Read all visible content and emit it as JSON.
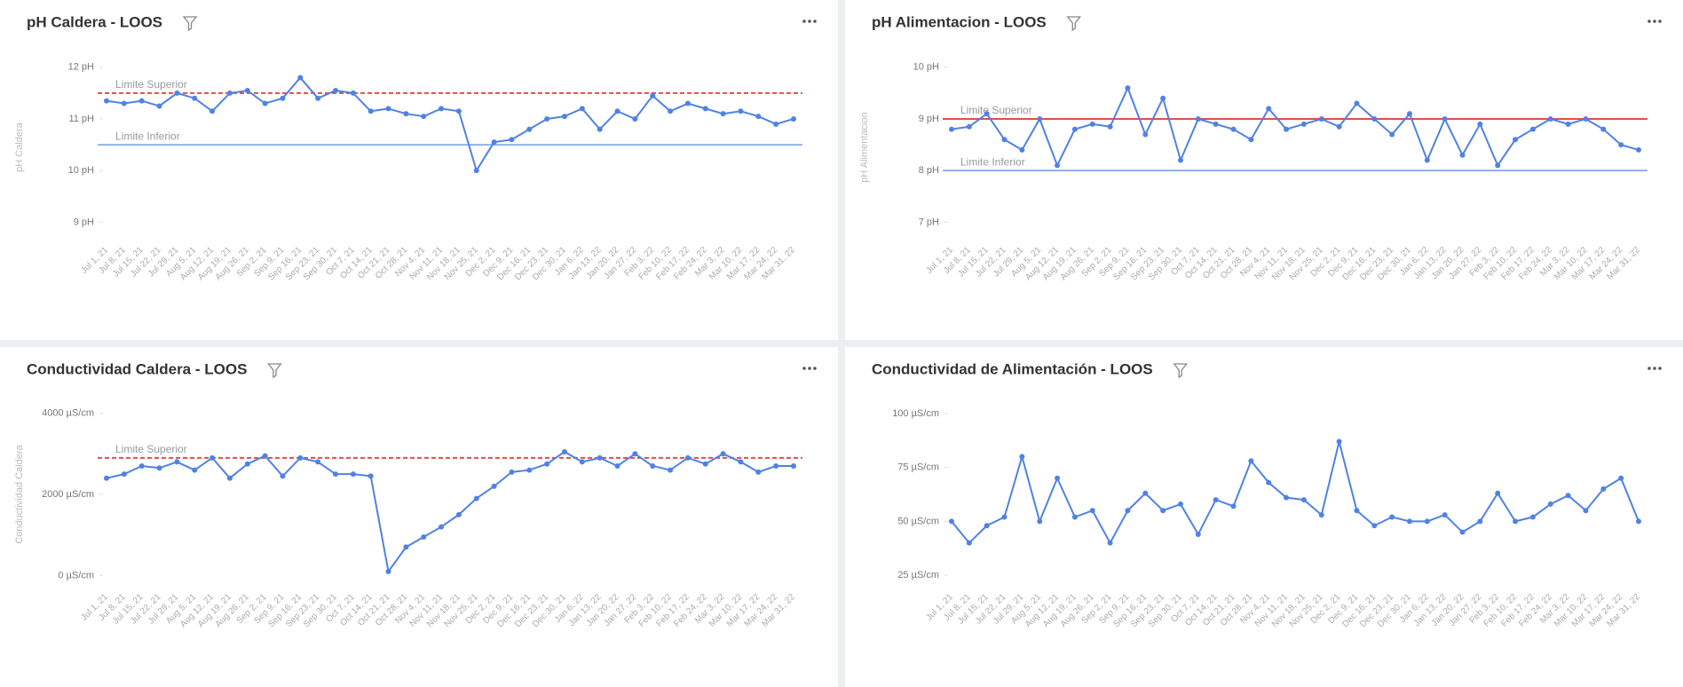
{
  "chart_data": [
    {
      "type": "line",
      "title": "pH Caldera - LOOS",
      "y_label": "pH Caldera",
      "color": "#4f82e3",
      "categories": [
        "Jul 1, 21",
        "Jul 8, 21",
        "Jul 15, 21",
        "Jul 22, 21",
        "Jul 29, 21",
        "Aug 5, 21",
        "Aug 12, 21",
        "Aug 19, 21",
        "Aug 26, 21",
        "Sep 2, 21",
        "Sep 9, 21",
        "Sep 16, 21",
        "Sep 23, 21",
        "Sep 30, 21",
        "Oct 7, 21",
        "Oct 14, 21",
        "Oct 21, 21",
        "Oct 28, 21",
        "Nov 4, 21",
        "Nov 11, 21",
        "Nov 18, 21",
        "Nov 25, 21",
        "Dec 2, 21",
        "Dec 9, 21",
        "Dec 16, 21",
        "Dec 23, 21",
        "Dec 30, 21",
        "Jan 6, 22",
        "Jan 13, 22",
        "Jan 20, 22",
        "Jan 27, 22",
        "Feb 3, 22",
        "Feb 10, 22",
        "Feb 17, 22",
        "Feb 24, 22",
        "Mar 3, 22",
        "Mar 10, 22",
        "Mar 17, 22",
        "Mar 24, 22",
        "Mar 31, 22"
      ],
      "values": [
        11.35,
        11.3,
        11.35,
        11.25,
        11.5,
        11.4,
        11.15,
        11.5,
        11.55,
        11.3,
        11.4,
        11.8,
        11.4,
        11.55,
        11.5,
        11.15,
        11.2,
        11.1,
        11.05,
        11.2,
        11.15,
        10.0,
        10.55,
        10.6,
        10.8,
        11.0,
        11.05,
        11.2,
        10.8,
        11.15,
        11.0,
        11.45,
        11.15,
        11.3,
        11.2,
        11.1,
        11.15,
        11.05,
        10.9,
        11.0
      ],
      "ylim": [
        8.8,
        12.1
      ],
      "yticks": [
        {
          "value": 12,
          "label": "12 pH"
        },
        {
          "value": 11,
          "label": "11 pH"
        },
        {
          "value": 10,
          "label": "10 pH"
        },
        {
          "value": 9,
          "label": "9 pH"
        }
      ],
      "reference_lines": [
        {
          "label": "Limite Superior",
          "value": 11.5,
          "color": "#e84a4a",
          "style": "dashed"
        },
        {
          "label": "Limite Inferior",
          "value": 10.5,
          "color": "#8fb0ea",
          "style": "solid"
        }
      ]
    },
    {
      "type": "line",
      "title": "pH Alimentacion - LOOS",
      "y_label": "pH Alimentacion",
      "color": "#4f82e3",
      "categories": [
        "Jul 1, 21",
        "Jul 8, 21",
        "Jul 15, 21",
        "Jul 22, 21",
        "Jul 29, 21",
        "Aug 5, 21",
        "Aug 12, 21",
        "Aug 19, 21",
        "Aug 26, 21",
        "Sep 2, 21",
        "Sep 9, 21",
        "Sep 16, 21",
        "Sep 23, 21",
        "Sep 30, 21",
        "Oct 7, 21",
        "Oct 14, 21",
        "Oct 21, 21",
        "Oct 28, 21",
        "Nov 4, 21",
        "Nov 11, 21",
        "Nov 18, 21",
        "Nov 25, 21",
        "Dec 2, 21",
        "Dec 9, 21",
        "Dec 16, 21",
        "Dec 23, 21",
        "Dec 30, 21",
        "Jan 6, 22",
        "Jan 13, 22",
        "Jan 20, 22",
        "Jan 27, 22",
        "Feb 3, 22",
        "Feb 10, 22",
        "Feb 17, 22",
        "Feb 24, 22",
        "Mar 3, 22",
        "Mar 10, 22",
        "Mar 17, 22",
        "Mar 24, 22",
        "Mar 31, 22"
      ],
      "values": [
        8.8,
        8.85,
        9.1,
        8.6,
        8.4,
        9.0,
        8.1,
        8.8,
        8.9,
        8.85,
        9.6,
        8.7,
        9.4,
        8.2,
        9.0,
        8.9,
        8.8,
        8.6,
        9.2,
        8.8,
        8.9,
        9.0,
        8.85,
        9.3,
        9.0,
        8.7,
        9.1,
        8.2,
        9.0,
        8.3,
        8.9,
        8.1,
        8.6,
        8.8,
        9.0,
        8.9,
        9.0,
        8.8,
        8.5,
        8.4
      ],
      "ylim": [
        6.8,
        10.1
      ],
      "yticks": [
        {
          "value": 10,
          "label": "10 pH"
        },
        {
          "value": 9,
          "label": "9 pH"
        },
        {
          "value": 8,
          "label": "8 pH"
        },
        {
          "value": 7,
          "label": "7 pH"
        }
      ],
      "reference_lines": [
        {
          "label": "Limite Superior",
          "value": 9,
          "color": "#e84a4a",
          "style": "solid"
        },
        {
          "label": "Limite Inferior",
          "value": 8,
          "color": "#8fb0ea",
          "style": "solid"
        }
      ]
    },
    {
      "type": "line",
      "title": "Conductividad Caldera - LOOS",
      "y_label": "Conductividad Caldera",
      "color": "#4f82e3",
      "categories": [
        "Jul 1, 21",
        "Jul 8, 21",
        "Jul 15, 21",
        "Jul 22, 21",
        "Jul 29, 21",
        "Aug 5, 21",
        "Aug 12, 21",
        "Aug 19, 21",
        "Aug 26, 21",
        "Sep 2, 21",
        "Sep 9, 21",
        "Sep 16, 21",
        "Sep 23, 21",
        "Sep 30, 21",
        "Oct 7, 21",
        "Oct 14, 21",
        "Oct 21, 21",
        "Oct 28, 21",
        "Nov 4, 21",
        "Nov 11, 21",
        "Nov 18, 21",
        "Nov 25, 21",
        "Dec 2, 21",
        "Dec 9, 21",
        "Dec 16, 21",
        "Dec 23, 21",
        "Dec 30, 21",
        "Jan 6, 22",
        "Jan 13, 22",
        "Jan 20, 22",
        "Jan 27, 22",
        "Feb 3, 22",
        "Feb 10, 22",
        "Feb 17, 22",
        "Feb 24, 22",
        "Mar 3, 22",
        "Mar 10, 22",
        "Mar 17, 22",
        "Mar 24, 22",
        "Mar 31, 22"
      ],
      "values": [
        2400,
        2500,
        2700,
        2650,
        2800,
        2600,
        2900,
        2400,
        2750,
        2950,
        2450,
        2900,
        2800,
        2500,
        2500,
        2450,
        100,
        700,
        950,
        1200,
        1500,
        1900,
        2200,
        2550,
        2600,
        2750,
        3050,
        2800,
        2900,
        2700,
        3000,
        2700,
        2600,
        2900,
        2750,
        3000,
        2800,
        2550,
        2700,
        2700
      ],
      "ylim": [
        -100,
        4100
      ],
      "yticks": [
        {
          "value": 4000,
          "label": "4000 µS/cm"
        },
        {
          "value": 2000,
          "label": "2000 µS/cm"
        },
        {
          "value": 0,
          "label": "0 µS/cm"
        }
      ],
      "reference_lines": [
        {
          "label": "Limite Superior",
          "value": 2900,
          "color": "#e84a4a",
          "style": "dashed"
        }
      ]
    },
    {
      "type": "line",
      "title": "Conductividad de Alimentación - LOOS",
      "color": "#4f82e3",
      "categories": [
        "Jul 1, 21",
        "Jul 8, 21",
        "Jul 15, 21",
        "Jul 22, 21",
        "Jul 29, 21",
        "Aug 5, 21",
        "Aug 12, 21",
        "Aug 19, 21",
        "Aug 26, 21",
        "Sep 2, 21",
        "Sep 9, 21",
        "Sep 16, 21",
        "Sep 23, 21",
        "Sep 30, 21",
        "Oct 7, 21",
        "Oct 14, 21",
        "Oct 21, 21",
        "Oct 28, 21",
        "Nov 4, 21",
        "Nov 11, 21",
        "Nov 18, 21",
        "Nov 25, 21",
        "Dec 2, 21",
        "Dec 9, 21",
        "Dec 16, 21",
        "Dec 23, 21",
        "Dec 30, 21",
        "Jan 6, 22",
        "Jan 13, 22",
        "Jan 20, 22",
        "Jan 27, 22",
        "Feb 3, 22",
        "Feb 10, 22",
        "Feb 17, 22",
        "Feb 24, 22",
        "Mar 3, 22",
        "Mar 10, 22",
        "Mar 17, 22",
        "Mar 24, 22",
        "Mar 31, 22"
      ],
      "values": [
        50,
        40,
        48,
        52,
        80,
        50,
        70,
        52,
        55,
        40,
        55,
        63,
        55,
        58,
        44,
        60,
        57,
        78,
        68,
        61,
        60,
        53,
        87,
        55,
        48,
        52,
        50,
        50,
        53,
        45,
        50,
        63,
        50,
        52,
        58,
        62,
        55,
        65,
        70,
        50
      ],
      "ylim": [
        23,
        102
      ],
      "yticks": [
        {
          "value": 100,
          "label": "100 µS/cm"
        },
        {
          "value": 75,
          "label": "75 µS/cm"
        },
        {
          "value": 50,
          "label": "50 µS/cm"
        },
        {
          "value": 25,
          "label": "25 µS/cm"
        }
      ],
      "reference_lines": []
    }
  ]
}
